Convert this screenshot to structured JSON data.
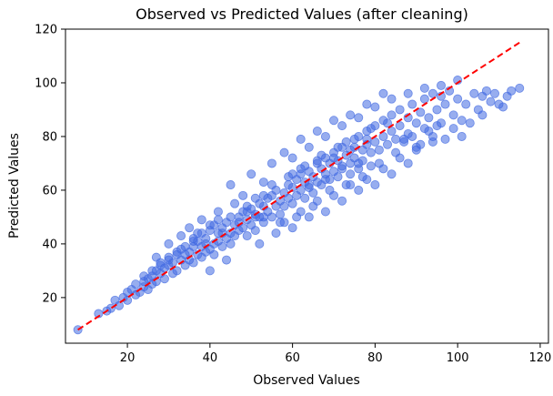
{
  "chart_data": {
    "type": "scatter",
    "title": "Observed vs Predicted Values (after cleaning)",
    "xlabel": "Observed Values",
    "ylabel": "Predicted Values",
    "xlim": [
      5,
      122
    ],
    "ylim": [
      3,
      120
    ],
    "xticks": [
      20,
      40,
      60,
      80,
      100,
      120
    ],
    "yticks": [
      20,
      40,
      60,
      80,
      100,
      120
    ],
    "grid": false,
    "colors": {
      "points": "#4169e1",
      "reference_line": "#ff0000"
    },
    "reference_line": {
      "style": "dashed",
      "from": [
        8,
        8
      ],
      "to": [
        115,
        115
      ]
    },
    "series": [
      {
        "points": [
          [
            8,
            8
          ],
          [
            13,
            14
          ],
          [
            15,
            15
          ],
          [
            16,
            16
          ],
          [
            17,
            19
          ],
          [
            18,
            17
          ],
          [
            19,
            20
          ],
          [
            20,
            19
          ],
          [
            20,
            22
          ],
          [
            21,
            23
          ],
          [
            22,
            25
          ],
          [
            22,
            21
          ],
          [
            23,
            22
          ],
          [
            24,
            26
          ],
          [
            24,
            24
          ],
          [
            25,
            27
          ],
          [
            25,
            23
          ],
          [
            26,
            28
          ],
          [
            26,
            25
          ],
          [
            27,
            30
          ],
          [
            27,
            26
          ],
          [
            28,
            29
          ],
          [
            28,
            33
          ],
          [
            29,
            31
          ],
          [
            29,
            27
          ],
          [
            30,
            32
          ],
          [
            30,
            35
          ],
          [
            31,
            33
          ],
          [
            31,
            29
          ],
          [
            32,
            30
          ],
          [
            32,
            36
          ],
          [
            33,
            34
          ],
          [
            33,
            38
          ],
          [
            34,
            32
          ],
          [
            34,
            36
          ],
          [
            35,
            37
          ],
          [
            35,
            34
          ],
          [
            36,
            39
          ],
          [
            36,
            33
          ],
          [
            37,
            36
          ],
          [
            37,
            41
          ],
          [
            38,
            35
          ],
          [
            38,
            39
          ],
          [
            39,
            42
          ],
          [
            39,
            37
          ],
          [
            40,
            45
          ],
          [
            40,
            38
          ],
          [
            41,
            40
          ],
          [
            41,
            36
          ],
          [
            42,
            44
          ],
          [
            42,
            41
          ],
          [
            43,
            39
          ],
          [
            43,
            46
          ],
          [
            44,
            42
          ],
          [
            44,
            48
          ],
          [
            45,
            44
          ],
          [
            45,
            40
          ],
          [
            46,
            47
          ],
          [
            46,
            43
          ],
          [
            47,
            50
          ],
          [
            47,
            45
          ],
          [
            48,
            52
          ],
          [
            48,
            46
          ],
          [
            49,
            49
          ],
          [
            49,
            43
          ],
          [
            50,
            53
          ],
          [
            50,
            47
          ],
          [
            51,
            51
          ],
          [
            51,
            45
          ],
          [
            52,
            55
          ],
          [
            52,
            50
          ],
          [
            53,
            54
          ],
          [
            53,
            48
          ],
          [
            54,
            57
          ],
          [
            54,
            52
          ],
          [
            55,
            50
          ],
          [
            55,
            58
          ],
          [
            56,
            54
          ],
          [
            56,
            60
          ],
          [
            57,
            56
          ],
          [
            57,
            51
          ],
          [
            58,
            59
          ],
          [
            58,
            54
          ],
          [
            59,
            62
          ],
          [
            59,
            57
          ],
          [
            60,
            61
          ],
          [
            60,
            55
          ],
          [
            61,
            64
          ],
          [
            61,
            58
          ],
          [
            62,
            60
          ],
          [
            62,
            66
          ],
          [
            63,
            63
          ],
          [
            63,
            57
          ],
          [
            64,
            67
          ],
          [
            64,
            61
          ],
          [
            65,
            65
          ],
          [
            65,
            59
          ],
          [
            66,
            70
          ],
          [
            66,
            63
          ],
          [
            67,
            68
          ],
          [
            67,
            62
          ],
          [
            68,
            72
          ],
          [
            68,
            66
          ],
          [
            69,
            64
          ],
          [
            69,
            70
          ],
          [
            70,
            74
          ],
          [
            70,
            67
          ],
          [
            71,
            71
          ],
          [
            71,
            65
          ],
          [
            72,
            76
          ],
          [
            72,
            69
          ],
          [
            73,
            73
          ],
          [
            73,
            78
          ],
          [
            74,
            70
          ],
          [
            74,
            66
          ],
          [
            75,
            76
          ],
          [
            75,
            72
          ],
          [
            76,
            80
          ],
          [
            76,
            68
          ],
          [
            77,
            75
          ],
          [
            77,
            71
          ],
          [
            78,
            82
          ],
          [
            78,
            77
          ],
          [
            79,
            74
          ],
          [
            79,
            69
          ],
          [
            80,
            84
          ],
          [
            80,
            78
          ],
          [
            81,
            75
          ],
          [
            82,
            86
          ],
          [
            82,
            80
          ],
          [
            83,
            77
          ],
          [
            84,
            88
          ],
          [
            84,
            82
          ],
          [
            85,
            79
          ],
          [
            86,
            90
          ],
          [
            86,
            84
          ],
          [
            87,
            78
          ],
          [
            88,
            87
          ],
          [
            88,
            81
          ],
          [
            89,
            92
          ],
          [
            90,
            85
          ],
          [
            90,
            76
          ],
          [
            91,
            89
          ],
          [
            92,
            94
          ],
          [
            92,
            83
          ],
          [
            93,
            87
          ],
          [
            94,
            96
          ],
          [
            94,
            80
          ],
          [
            95,
            90
          ],
          [
            96,
            85
          ],
          [
            96,
            95
          ],
          [
            97,
            92
          ],
          [
            98,
            97
          ],
          [
            99,
            88
          ],
          [
            100,
            101
          ],
          [
            100,
            94
          ],
          [
            101,
            86
          ],
          [
            102,
            92
          ],
          [
            104,
            96
          ],
          [
            105,
            90
          ],
          [
            106,
            95
          ],
          [
            107,
            97
          ],
          [
            108,
            93
          ],
          [
            109,
            96
          ],
          [
            110,
            92
          ],
          [
            111,
            91
          ],
          [
            112,
            95
          ],
          [
            113,
            97
          ],
          [
            115,
            98
          ],
          [
            45,
            62
          ],
          [
            50,
            66
          ],
          [
            55,
            70
          ],
          [
            58,
            74
          ],
          [
            62,
            79
          ],
          [
            66,
            82
          ],
          [
            70,
            86
          ],
          [
            74,
            88
          ],
          [
            78,
            92
          ],
          [
            82,
            96
          ],
          [
            52,
            40
          ],
          [
            56,
            44
          ],
          [
            60,
            46
          ],
          [
            64,
            50
          ],
          [
            68,
            52
          ],
          [
            72,
            56
          ],
          [
            76,
            60
          ],
          [
            80,
            62
          ],
          [
            84,
            66
          ],
          [
            88,
            70
          ],
          [
            35,
            46
          ],
          [
            38,
            49
          ],
          [
            42,
            52
          ],
          [
            30,
            40
          ],
          [
            48,
            58
          ],
          [
            53,
            63
          ],
          [
            27,
            35
          ],
          [
            33,
            43
          ],
          [
            40,
            30
          ],
          [
            44,
            34
          ],
          [
            58,
            48
          ],
          [
            62,
            52
          ],
          [
            66,
            56
          ],
          [
            70,
            58
          ],
          [
            74,
            62
          ],
          [
            78,
            64
          ],
          [
            82,
            68
          ],
          [
            86,
            72
          ],
          [
            90,
            75
          ],
          [
            94,
            78
          ],
          [
            60,
            72
          ],
          [
            64,
            76
          ],
          [
            68,
            80
          ],
          [
            72,
            84
          ],
          [
            76,
            87
          ],
          [
            80,
            91
          ],
          [
            84,
            94
          ],
          [
            88,
            96
          ],
          [
            92,
            98
          ],
          [
            96,
            99
          ],
          [
            46,
            55
          ],
          [
            49,
            52
          ],
          [
            51,
            57
          ],
          [
            53,
            50
          ],
          [
            55,
            62
          ],
          [
            57,
            48
          ],
          [
            59,
            65
          ],
          [
            61,
            50
          ],
          [
            63,
            69
          ],
          [
            65,
            54
          ],
          [
            67,
            73
          ],
          [
            69,
            60
          ],
          [
            71,
            76
          ],
          [
            73,
            62
          ],
          [
            75,
            79
          ],
          [
            77,
            65
          ],
          [
            79,
            83
          ],
          [
            81,
            70
          ],
          [
            83,
            85
          ],
          [
            85,
            74
          ],
          [
            87,
            79
          ],
          [
            89,
            80
          ],
          [
            91,
            77
          ],
          [
            93,
            82
          ],
          [
            95,
            84
          ],
          [
            97,
            79
          ],
          [
            99,
            83
          ],
          [
            101,
            80
          ],
          [
            103,
            85
          ],
          [
            106,
            88
          ],
          [
            36,
            41
          ],
          [
            37,
            44
          ],
          [
            39,
            40
          ],
          [
            41,
            47
          ],
          [
            43,
            44
          ],
          [
            45,
            50
          ],
          [
            47,
            48
          ],
          [
            49,
            54
          ],
          [
            51,
            50
          ],
          [
            53,
            58
          ],
          [
            24,
            28
          ],
          [
            26,
            30
          ],
          [
            28,
            32
          ],
          [
            30,
            34
          ],
          [
            32,
            37
          ],
          [
            34,
            39
          ],
          [
            36,
            42
          ],
          [
            38,
            44
          ],
          [
            40,
            47
          ],
          [
            42,
            49
          ],
          [
            60,
            66
          ],
          [
            62,
            68
          ],
          [
            64,
            62
          ],
          [
            66,
            71
          ],
          [
            68,
            64
          ],
          [
            70,
            72
          ],
          [
            72,
            68
          ],
          [
            74,
            75
          ],
          [
            76,
            70
          ],
          [
            78,
            79
          ]
        ]
      }
    ]
  }
}
